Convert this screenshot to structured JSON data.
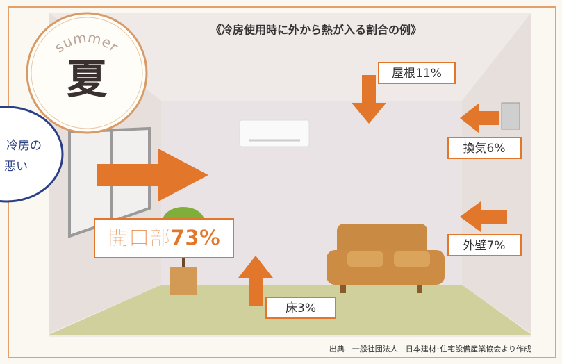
{
  "title": "《冷房使用時に外から熱が入る割合の例》",
  "badge": {
    "season": "summer",
    "label": "夏"
  },
  "bubble": {
    "line1": "冷房の",
    "line2": "悪い"
  },
  "labels": {
    "roof": "屋根11%",
    "ventilation": "換気6%",
    "outer_wall": "外壁7%",
    "openings": "開口部73%",
    "floor": "床3%"
  },
  "source": "出典　一般社団法人　日本建材･住宅設備産業協会より作成"
}
